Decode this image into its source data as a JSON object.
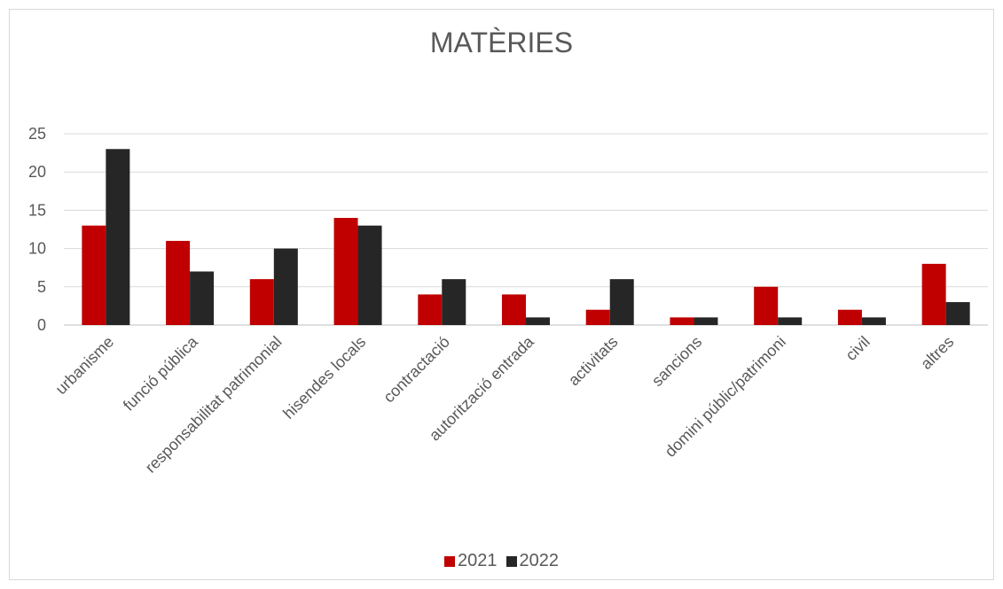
{
  "chart_data": {
    "type": "bar",
    "title": "MATÈRIES",
    "categories": [
      "urbanisme",
      "funció pública",
      "responsabilitat patrimonial",
      "hisendes locals",
      "contractació",
      "autorització entrada",
      "activitats",
      "sancions",
      "domini públic/patrimoni",
      "civil",
      "altres"
    ],
    "series": [
      {
        "name": "2021",
        "color": "#c00000",
        "values": [
          13,
          11,
          6,
          14,
          4,
          4,
          2,
          1,
          5,
          2,
          8
        ]
      },
      {
        "name": "2022",
        "color": "#262626",
        "values": [
          23,
          7,
          10,
          13,
          6,
          1,
          6,
          1,
          1,
          1,
          3
        ]
      }
    ],
    "ylim": [
      0,
      25
    ],
    "yticks": [
      0,
      5,
      10,
      15,
      20,
      25
    ],
    "grid": true,
    "legend_position": "bottom"
  }
}
